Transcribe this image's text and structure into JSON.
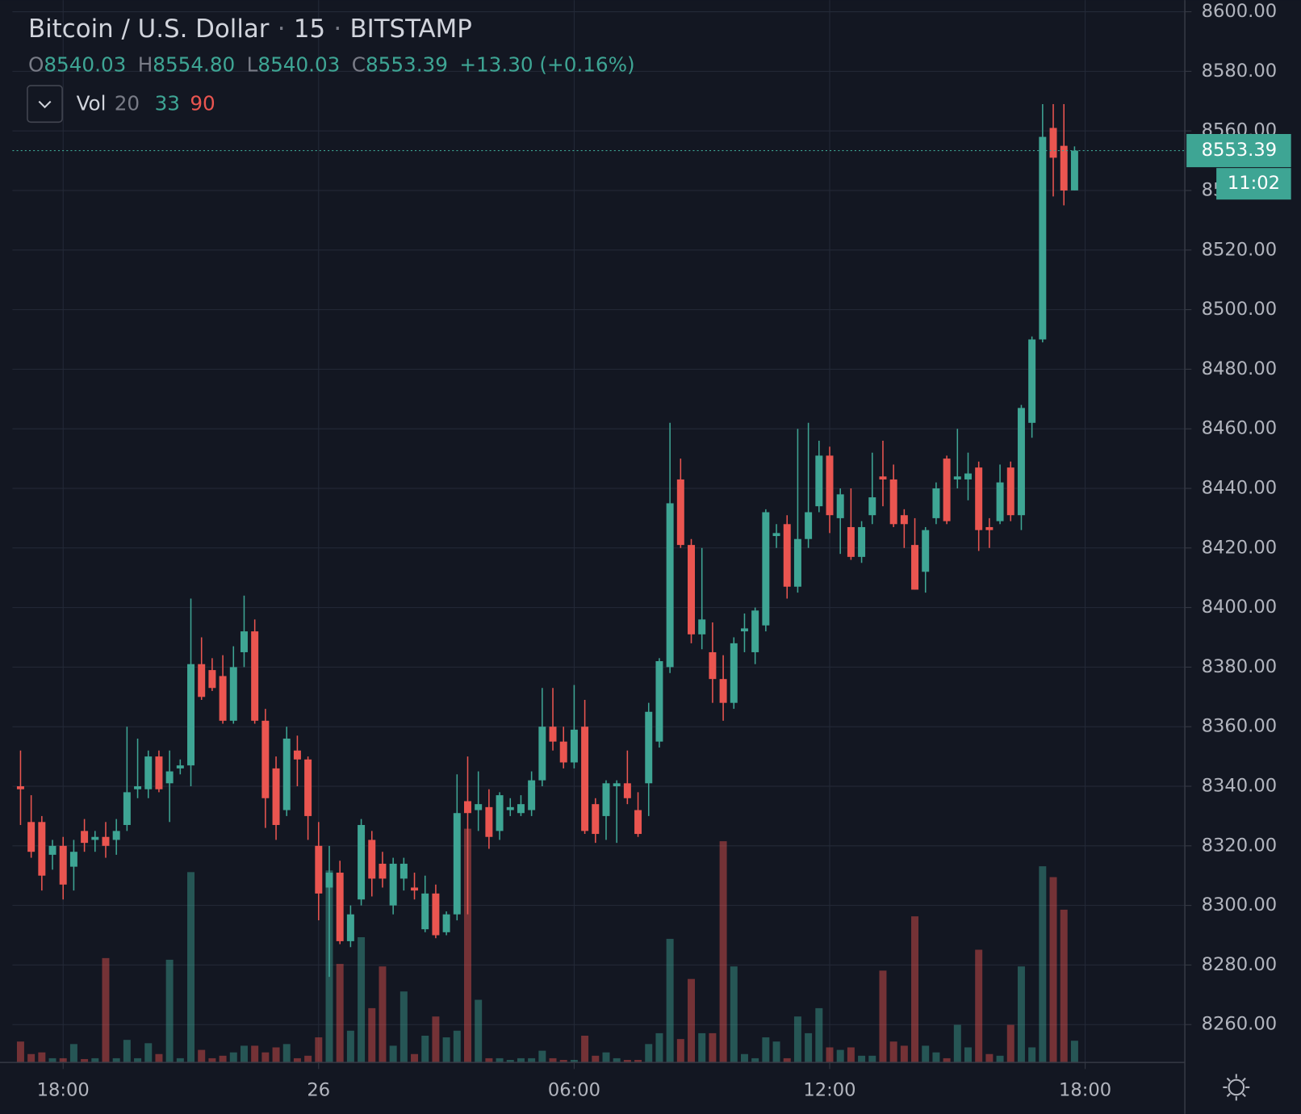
{
  "chart_data": {
    "type": "candlestick",
    "title": "Bitcoin / U.S. Dollar",
    "interval": "15",
    "exchange": "BITSTAMP",
    "legend": {
      "o_label": "O",
      "o": "8540.03",
      "h_label": "H",
      "h": "8554.80",
      "l_label": "L",
      "l": "8540.03",
      "c_label": "C",
      "c": "8553.39",
      "change": "+13.30 (+0.16%)"
    },
    "volume_legend": {
      "label": "Vol",
      "length": "20",
      "up": "33",
      "down": "90"
    },
    "countdown": "11:02",
    "up_color": "#3ea594",
    "down_color": "#ea5550",
    "grid": true,
    "xlim": [
      16.81,
      44.34
    ],
    "xticks": [
      {
        "value": 18,
        "label": "18:00"
      },
      {
        "value": 24,
        "label": "26"
      },
      {
        "value": 30,
        "label": "06:00"
      },
      {
        "value": 36,
        "label": "12:00"
      },
      {
        "value": 42,
        "label": "18:00"
      }
    ],
    "ylim": [
      8247.3,
      8603.9
    ],
    "yticks": [
      {
        "value": 8260,
        "label": "8260.00"
      },
      {
        "value": 8280,
        "label": "8280.00"
      },
      {
        "value": 8300,
        "label": "8300.00"
      },
      {
        "value": 8320,
        "label": "8320.00"
      },
      {
        "value": 8340,
        "label": "8340.00"
      },
      {
        "value": 8360,
        "label": "8360.00"
      },
      {
        "value": 8380,
        "label": "8380.00"
      },
      {
        "value": 8400,
        "label": "8400.00"
      },
      {
        "value": 8420,
        "label": "8420.00"
      },
      {
        "value": 8440,
        "label": "8440.00"
      },
      {
        "value": 8460,
        "label": "8460.00"
      },
      {
        "value": 8480,
        "label": "8480.00"
      },
      {
        "value": 8500,
        "label": "8500.00"
      },
      {
        "value": 8520,
        "label": "8520.00"
      },
      {
        "value": 8540,
        "label": "8540.00"
      },
      {
        "value": 8560,
        "label": "8560.00"
      },
      {
        "value": 8580,
        "label": "8580.00"
      },
      {
        "value": 8600,
        "label": "8600.00"
      }
    ],
    "x": [
      17,
      17.25,
      17.5,
      17.75,
      18,
      18.25,
      18.5,
      18.75,
      19,
      19.25,
      19.5,
      19.75,
      20,
      20.25,
      20.5,
      20.75,
      21,
      21.25,
      21.5,
      21.75,
      22,
      22.25,
      22.5,
      22.75,
      23,
      23.25,
      23.5,
      23.75,
      24,
      24.25,
      24.5,
      24.75,
      25,
      25.25,
      25.5,
      25.75,
      26,
      26.25,
      26.5,
      26.75,
      27,
      27.25,
      27.5,
      27.75,
      28,
      28.25,
      28.5,
      28.75,
      29,
      29.25,
      29.5,
      29.75,
      30,
      30.25,
      30.5,
      30.75,
      31,
      31.25,
      31.5,
      31.75,
      32,
      32.25,
      32.5,
      32.75,
      33,
      33.25,
      33.5,
      33.75,
      34,
      34.25,
      34.5,
      34.75,
      35,
      35.25,
      35.5,
      35.75,
      36,
      36.25,
      36.5,
      36.75,
      37,
      37.25,
      37.5,
      37.75,
      38,
      38.25,
      38.5,
      38.75,
      39,
      39.25,
      39.5,
      39.75,
      40,
      40.25,
      40.5,
      40.75,
      41,
      41.25,
      41.5,
      41.75
    ],
    "open": [
      8340,
      8328,
      8328,
      8317,
      8320,
      8313,
      8325,
      8322,
      8323,
      8322,
      8327,
      8339,
      8339,
      8350,
      8341,
      8346,
      8347,
      8381,
      8379,
      8377,
      8362,
      8385,
      8392,
      8362,
      8346,
      8332,
      8352,
      8349,
      8320,
      8306,
      8311,
      8288,
      8302,
      8322,
      8314,
      8300,
      8309,
      8306,
      8292,
      8304,
      8291,
      8297,
      8335,
      8332,
      8333,
      8325,
      8332,
      8331,
      8332,
      8342,
      8360,
      8355,
      8348,
      8360,
      8334,
      8330,
      8340,
      8341,
      8332,
      8341,
      8355,
      8380,
      8443,
      8421,
      8391,
      8385,
      8376,
      8368,
      8392,
      8385,
      8394,
      8424,
      8428,
      8407,
      8423,
      8434,
      8451,
      8430,
      8427,
      8417,
      8431,
      8444,
      8443,
      8431,
      8421,
      8412,
      8430,
      8450,
      8443,
      8443,
      8447,
      8427,
      8429,
      8447,
      8431,
      8462,
      8490,
      8561,
      8555,
      8540.03
    ],
    "high": [
      8352,
      8337,
      8330,
      8322,
      8323,
      8322,
      8329,
      8325,
      8328,
      8329,
      8360,
      8356,
      8352,
      8352,
      8352,
      8349,
      8403,
      8390,
      8383,
      8384,
      8387,
      8404,
      8396,
      8366,
      8350,
      8360,
      8357,
      8350,
      8328,
      8320,
      8315,
      8300,
      8329,
      8325,
      8318,
      8316,
      8316,
      8311,
      8310,
      8307,
      8298,
      8344,
      8350,
      8345,
      8339,
      8338,
      8336,
      8337,
      8345,
      8373,
      8373,
      8360,
      8374,
      8369,
      8336,
      8342,
      8342,
      8352,
      8338,
      8368,
      8383,
      8462,
      8450,
      8423,
      8420,
      8395,
      8384,
      8390,
      8398,
      8400,
      8433,
      8428,
      8431,
      8460,
      8462,
      8456,
      8454,
      8440,
      8440,
      8429,
      8452,
      8456,
      8448,
      8433,
      8430,
      8427,
      8442,
      8451,
      8460,
      8452,
      8449,
      8430,
      8448,
      8449,
      8468,
      8491,
      8569,
      8569,
      8569,
      8554.8
    ],
    "low": [
      8327,
      8316,
      8305,
      8312,
      8302,
      8305,
      8318,
      8318,
      8316,
      8317,
      8325,
      8336,
      8336,
      8338,
      8328,
      8344,
      8340,
      8369,
      8372,
      8361,
      8361,
      8380,
      8361,
      8326,
      8322,
      8330,
      8340,
      8322,
      8295,
      8276,
      8287,
      8286,
      8300,
      8303,
      8306,
      8297,
      8305,
      8302,
      8291,
      8289,
      8290,
      8295,
      8297,
      8325,
      8319,
      8322,
      8330,
      8330,
      8330,
      8340,
      8352,
      8346,
      8346,
      8324,
      8321,
      8322,
      8321,
      8334,
      8323,
      8330,
      8353,
      8378,
      8420,
      8388,
      8386,
      8368,
      8362,
      8366,
      8385,
      8381,
      8392,
      8420,
      8403,
      8405,
      8420,
      8432,
      8425,
      8418,
      8416,
      8415,
      8428,
      8434,
      8427,
      8420,
      8406,
      8405,
      8428,
      8428,
      8440,
      8436,
      8419,
      8420,
      8428,
      8429,
      8426,
      8457,
      8489,
      8538,
      8535,
      8540.03
    ],
    "close": [
      8339,
      8318,
      8310,
      8320,
      8307,
      8318,
      8321,
      8323,
      8320,
      8325,
      8338,
      8340,
      8350,
      8339,
      8345,
      8347,
      8381,
      8370,
      8373,
      8362,
      8380,
      8392,
      8362,
      8336,
      8327,
      8356,
      8349,
      8330,
      8304,
      8311,
      8288,
      8297,
      8327,
      8309,
      8309,
      8314,
      8314,
      8305,
      8304,
      8290,
      8297,
      8331,
      8331,
      8334,
      8323,
      8337,
      8333,
      8334,
      8342,
      8360,
      8355,
      8348,
      8359,
      8325,
      8324,
      8341,
      8341,
      8336,
      8324,
      8365,
      8382,
      8435,
      8421,
      8391,
      8396,
      8376,
      8368,
      8388,
      8393,
      8399,
      8432,
      8425,
      8407,
      8423,
      8432,
      8451,
      8431,
      8438,
      8417,
      8427,
      8437,
      8443,
      8428,
      8428,
      8406,
      8426,
      8440,
      8429,
      8444,
      8445,
      8426,
      8426,
      8442,
      8431,
      8467,
      8490,
      8558,
      8551,
      8540,
      8553.39
    ],
    "volume": [
      25,
      10,
      12,
      5,
      5,
      22,
      4,
      5,
      125,
      5,
      27,
      5,
      23,
      10,
      123,
      5,
      228,
      15,
      5,
      8,
      12,
      20,
      20,
      12,
      18,
      22,
      5,
      8,
      30,
      230,
      118,
      38,
      150,
      65,
      115,
      20,
      85,
      10,
      32,
      55,
      30,
      38,
      280,
      75,
      5,
      5,
      3,
      5,
      5,
      14,
      5,
      3,
      3,
      32,
      8,
      12,
      5,
      3,
      3,
      22,
      35,
      148,
      28,
      100,
      35,
      35,
      265,
      115,
      10,
      5,
      30,
      25,
      5,
      55,
      35,
      65,
      18,
      15,
      18,
      8,
      8,
      110,
      25,
      20,
      175,
      20,
      12,
      5,
      45,
      18,
      135,
      10,
      8,
      45,
      115,
      18,
      235,
      222,
      183,
      26
    ]
  }
}
